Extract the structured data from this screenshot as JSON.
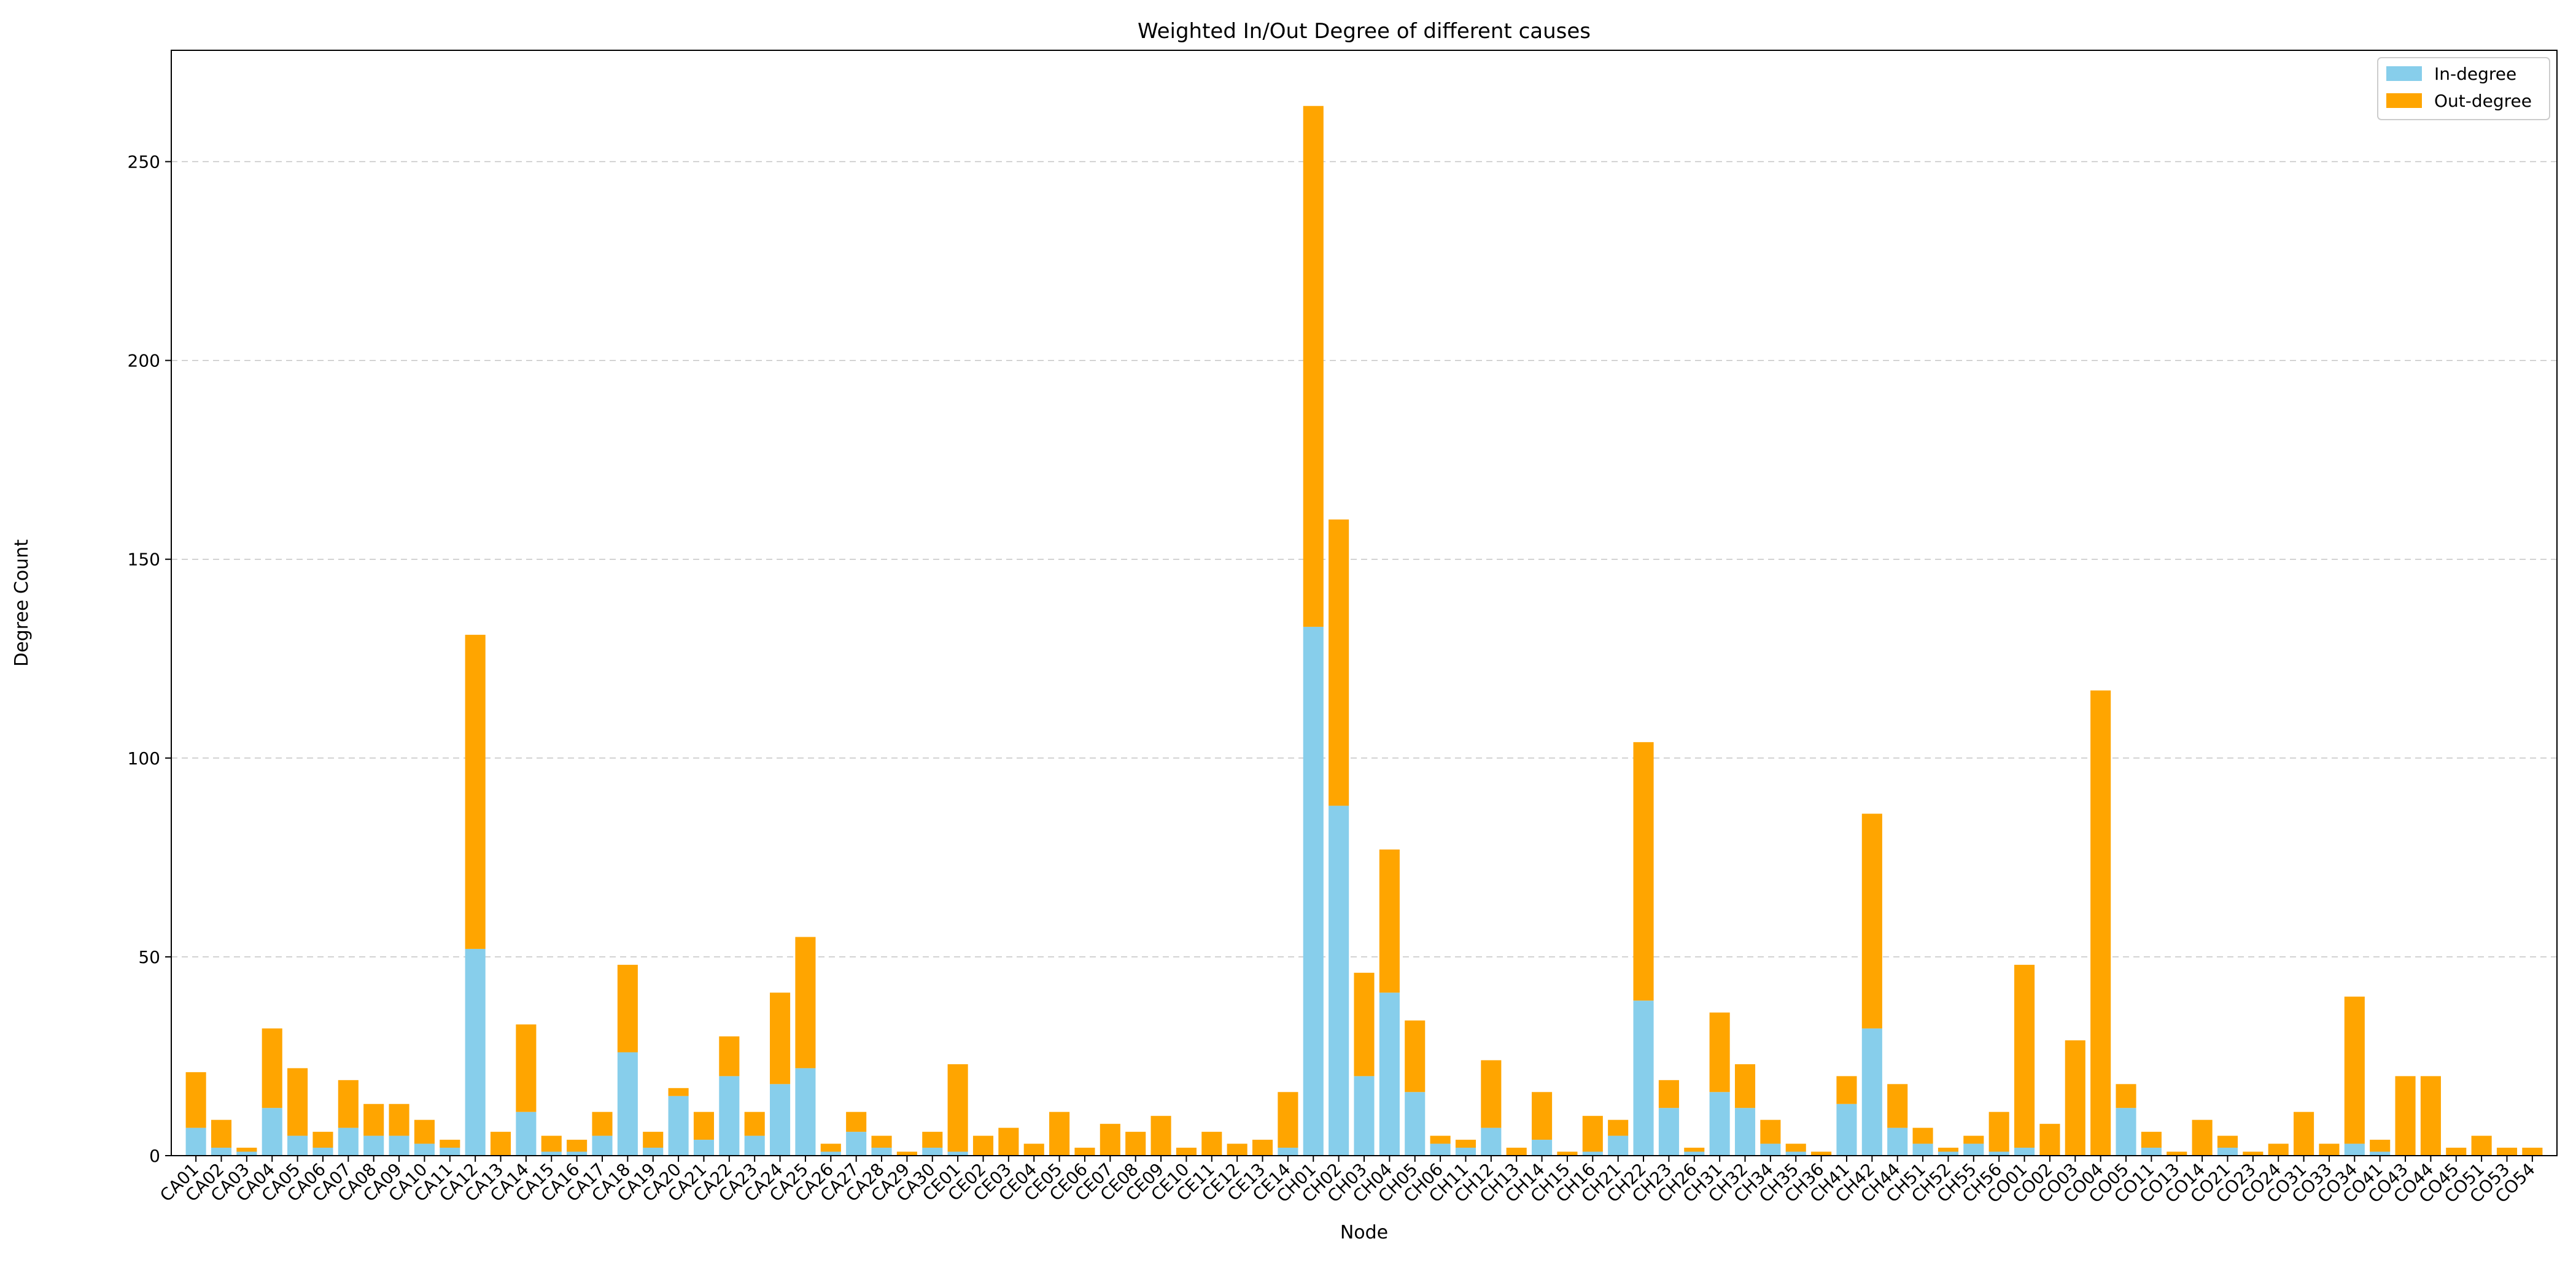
{
  "chart_data": {
    "type": "bar",
    "stacked": true,
    "title": "Weighted In/Out Degree of different causes",
    "xlabel": "Node",
    "ylabel": "Degree Count",
    "ylim": [
      0,
      278
    ],
    "yticks": [
      0,
      50,
      100,
      150,
      200,
      250
    ],
    "grid": "horizontal dashed",
    "legend_position": "top-right",
    "categories": [
      "CA01",
      "CA02",
      "CA03",
      "CA04",
      "CA05",
      "CA06",
      "CA07",
      "CA08",
      "CA09",
      "CA10",
      "CA11",
      "CA12",
      "CA13",
      "CA14",
      "CA15",
      "CA16",
      "CA17",
      "CA18",
      "CA19",
      "CA20",
      "CA21",
      "CA22",
      "CA23",
      "CA24",
      "CA25",
      "CA26",
      "CA27",
      "CA28",
      "CA29",
      "CA30",
      "CE01",
      "CE02",
      "CE03",
      "CE04",
      "CE05",
      "CE06",
      "CE07",
      "CE08",
      "CE09",
      "CE10",
      "CE11",
      "CE12",
      "CE13",
      "CE14",
      "CH01",
      "CH02",
      "CH03",
      "CH04",
      "CH05",
      "CH06",
      "CH11",
      "CH12",
      "CH13",
      "CH14",
      "CH15",
      "CH16",
      "CH21",
      "CH22",
      "CH23",
      "CH26",
      "CH31",
      "CH32",
      "CH34",
      "CH35",
      "CH36",
      "CH41",
      "CH42",
      "CH44",
      "CH51",
      "CH52",
      "CH55",
      "CH56",
      "CO01",
      "CO02",
      "CO03",
      "CO04",
      "CO05",
      "CO11",
      "CO13",
      "CO14",
      "CO21",
      "CO23",
      "CO24",
      "CO31",
      "CO33",
      "CO34",
      "CO41",
      "CO43",
      "CO44",
      "CO45",
      "CO51",
      "CO53",
      "CO54"
    ],
    "series": [
      {
        "name": "In-degree",
        "color": "#87ceeb",
        "values": [
          7,
          2,
          1,
          12,
          5,
          2,
          7,
          5,
          5,
          3,
          2,
          52,
          0,
          11,
          1,
          1,
          5,
          26,
          2,
          15,
          4,
          20,
          5,
          18,
          22,
          1,
          6,
          2,
          0,
          2,
          1,
          0,
          0,
          0,
          0,
          0,
          0,
          0,
          0,
          0,
          0,
          0,
          0,
          2,
          133,
          88,
          20,
          41,
          16,
          3,
          2,
          7,
          0,
          4,
          0,
          1,
          5,
          39,
          12,
          1,
          16,
          12,
          3,
          1,
          0,
          13,
          32,
          7,
          3,
          1,
          3,
          1,
          2,
          0,
          0,
          0,
          12,
          2,
          0,
          0,
          2,
          0,
          0,
          0,
          0,
          3,
          1,
          0,
          0,
          0,
          0,
          0,
          0
        ]
      },
      {
        "name": "Out-degree",
        "color": "#ffa500",
        "values": [
          14,
          7,
          1,
          20,
          17,
          4,
          12,
          8,
          8,
          6,
          2,
          79,
          6,
          22,
          4,
          3,
          6,
          22,
          4,
          2,
          7,
          10,
          6,
          23,
          33,
          2,
          5,
          3,
          1,
          4,
          22,
          5,
          7,
          3,
          11,
          2,
          8,
          6,
          10,
          2,
          6,
          3,
          4,
          14,
          131,
          72,
          26,
          36,
          18,
          2,
          2,
          17,
          2,
          12,
          1,
          9,
          4,
          65,
          7,
          1,
          20,
          11,
          6,
          2,
          1,
          7,
          54,
          11,
          4,
          1,
          2,
          10,
          46,
          8,
          29,
          117,
          6,
          4,
          1,
          9,
          3,
          1,
          3,
          11,
          3,
          37,
          3,
          20,
          20,
          2,
          5,
          2,
          2
        ]
      }
    ]
  }
}
